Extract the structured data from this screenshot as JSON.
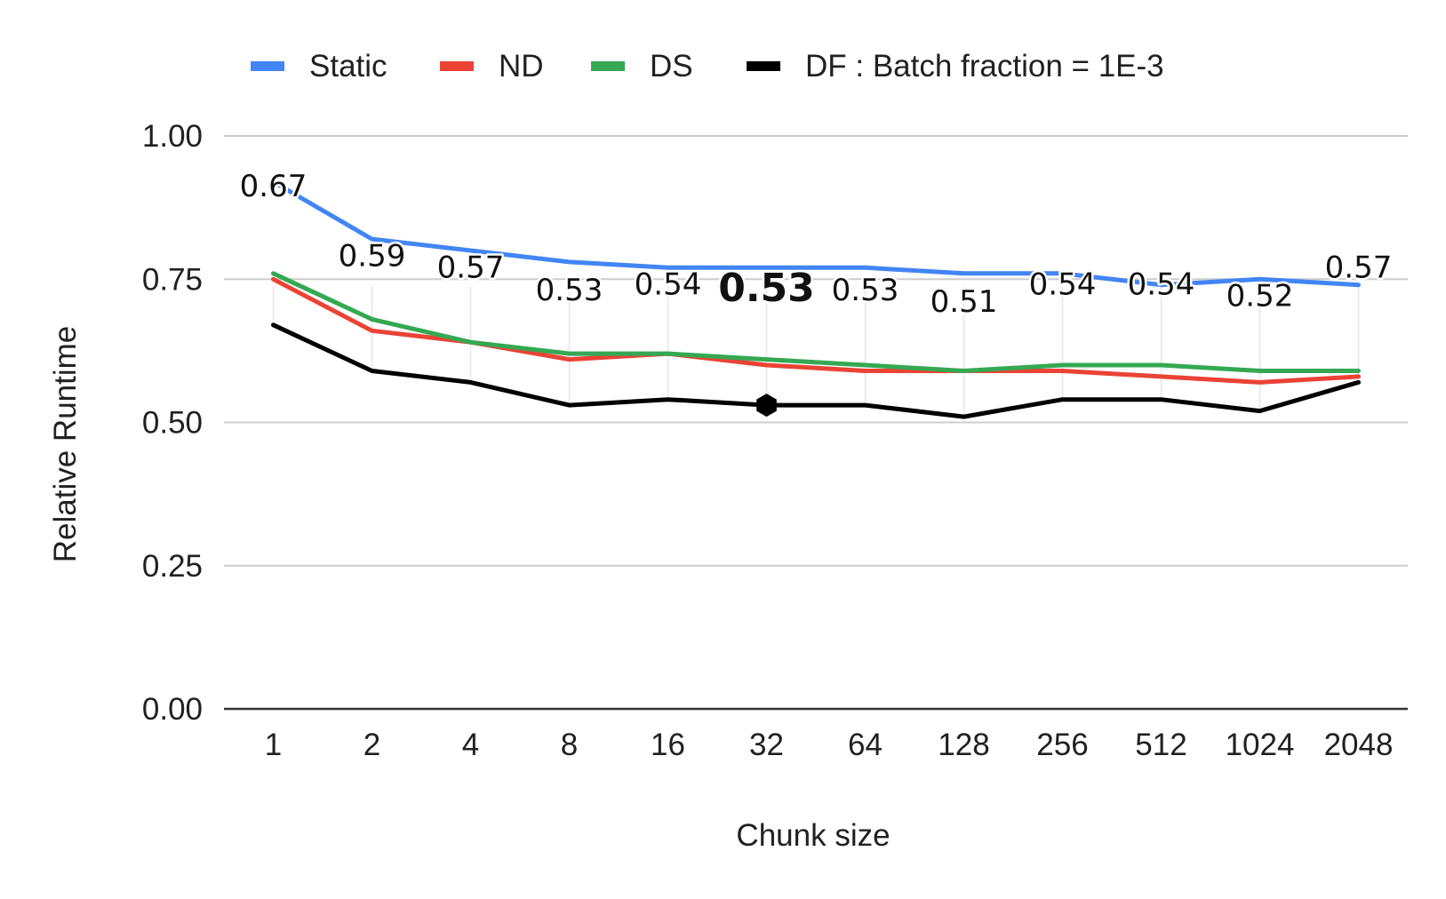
{
  "chart_data": {
    "type": "line",
    "title": "",
    "xlabel": "Chunk size",
    "ylabel": "Relative Runtime",
    "categories": [
      "1",
      "2",
      "4",
      "8",
      "16",
      "32",
      "64",
      "128",
      "256",
      "512",
      "1024",
      "2048"
    ],
    "ylim": [
      0,
      1
    ],
    "yticks": [
      "0.00",
      "0.25",
      "0.50",
      "0.75",
      "1.00"
    ],
    "ytick_values": [
      0,
      0.25,
      0.5,
      0.75,
      1.0
    ],
    "grid": true,
    "legend_position": "top",
    "series": [
      {
        "name": "Static",
        "color": "#4285f4",
        "values": [
          0.92,
          0.82,
          0.8,
          0.78,
          0.77,
          0.77,
          0.77,
          0.76,
          0.76,
          0.74,
          0.75,
          0.74
        ]
      },
      {
        "name": "ND",
        "color": "#ea4335",
        "values": [
          0.75,
          0.66,
          0.64,
          0.61,
          0.62,
          0.6,
          0.59,
          0.59,
          0.59,
          0.58,
          0.57,
          0.58
        ]
      },
      {
        "name": "DS",
        "color": "#34a853",
        "values": [
          0.76,
          0.68,
          0.64,
          0.62,
          0.62,
          0.61,
          0.6,
          0.59,
          0.6,
          0.6,
          0.59,
          0.59
        ]
      },
      {
        "name": "DF : Batch fraction = 1E-3",
        "color": "#000000",
        "values": [
          0.67,
          0.59,
          0.57,
          0.53,
          0.54,
          0.53,
          0.53,
          0.51,
          0.54,
          0.54,
          0.52,
          0.57
        ]
      }
    ],
    "data_labels": {
      "series": "DF : Batch fraction = 1E-3",
      "labels": [
        "0.67",
        "0.59",
        "0.57",
        "0.53",
        "0.54",
        "0.53",
        "0.53",
        "0.51",
        "0.54",
        "0.54",
        "0.52",
        "0.57"
      ],
      "highlight_index": 5
    }
  }
}
